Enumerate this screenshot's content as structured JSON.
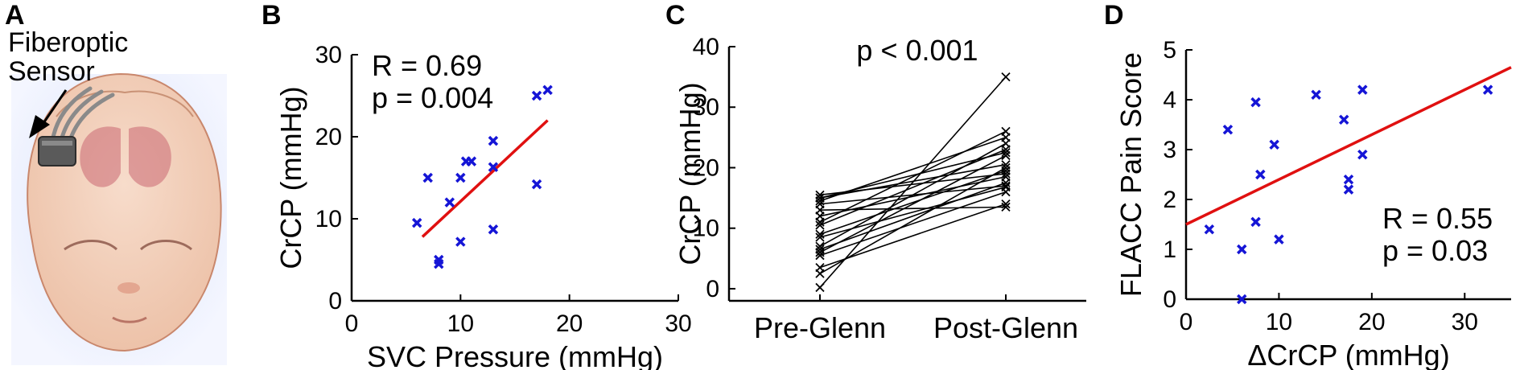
{
  "panel_a": {
    "letter": "A",
    "label_line1": "Fiberoptic",
    "label_line2": "Sensor"
  },
  "chart_data": [
    {
      "panel": "B",
      "type": "scatter",
      "xlabel": "SVC Pressure (mmHg)",
      "ylabel": "CrCP (mmHg)",
      "xlim": [
        0,
        30
      ],
      "ylim": [
        0,
        30
      ],
      "xticks": [
        0,
        10,
        20,
        30
      ],
      "yticks": [
        0,
        10,
        20,
        30
      ],
      "marker_color": "#1515d6",
      "fit_color": "#e01010",
      "points": [
        [
          6,
          9.5
        ],
        [
          7,
          15
        ],
        [
          8,
          5
        ],
        [
          8,
          4.5
        ],
        [
          9,
          12
        ],
        [
          10,
          15
        ],
        [
          10,
          7.2
        ],
        [
          10.5,
          17
        ],
        [
          11,
          17
        ],
        [
          13,
          19.5
        ],
        [
          13,
          16.3
        ],
        [
          13,
          8.7
        ],
        [
          17,
          14.2
        ],
        [
          17,
          25
        ],
        [
          18,
          25.7
        ]
      ],
      "fit_line": [
        [
          6.5,
          7.8
        ],
        [
          18,
          22
        ]
      ],
      "stat_r": "R = 0.69",
      "stat_p": "p = 0.004"
    },
    {
      "panel": "C",
      "type": "line",
      "categories": [
        "Pre-Glenn",
        "Post-Glenn"
      ],
      "ylabel": "CrCP (mmHg)",
      "ylim": [
        -2,
        40
      ],
      "yticks": [
        0,
        10,
        20,
        30,
        40
      ],
      "line_color": "#000000",
      "stat": "p < 0.001",
      "pairs": [
        [
          0.2,
          35
        ],
        [
          2.5,
          20
        ],
        [
          3.5,
          14
        ],
        [
          5.5,
          16
        ],
        [
          6,
          22
        ],
        [
          6.5,
          17.5
        ],
        [
          7,
          24
        ],
        [
          8.5,
          16.8
        ],
        [
          9,
          19.5
        ],
        [
          10.5,
          23
        ],
        [
          11,
          26
        ],
        [
          12,
          18.5
        ],
        [
          13,
          13.5
        ],
        [
          14,
          17
        ],
        [
          14.5,
          25
        ],
        [
          15,
          20.5
        ],
        [
          15.5,
          19
        ],
        [
          15,
          22.5
        ]
      ]
    },
    {
      "panel": "D",
      "type": "scatter",
      "xlabel": "ΔCrCP (mmHg)",
      "ylabel": "FLACC Pain Score",
      "xlim": [
        0,
        35
      ],
      "ylim": [
        0,
        5
      ],
      "xticks": [
        0,
        10,
        20,
        30
      ],
      "yticks": [
        0,
        1,
        2,
        3,
        4,
        5
      ],
      "marker_color": "#1515d6",
      "fit_color": "#e01010",
      "points": [
        [
          2.5,
          1.4
        ],
        [
          4.5,
          3.4
        ],
        [
          6,
          1
        ],
        [
          6,
          0
        ],
        [
          7.5,
          1.55
        ],
        [
          7.5,
          3.95
        ],
        [
          8,
          2.5
        ],
        [
          9.5,
          3.1
        ],
        [
          10,
          1.2
        ],
        [
          14,
          4.1
        ],
        [
          17,
          3.6
        ],
        [
          17.5,
          2.4
        ],
        [
          17.5,
          2.2
        ],
        [
          19,
          4.2
        ],
        [
          19,
          2.9
        ],
        [
          32.5,
          4.2
        ]
      ],
      "fit_line": [
        [
          0,
          1.5
        ],
        [
          35,
          4.65
        ]
      ],
      "stat_r": "R = 0.55",
      "stat_p": "p = 0.03"
    }
  ]
}
